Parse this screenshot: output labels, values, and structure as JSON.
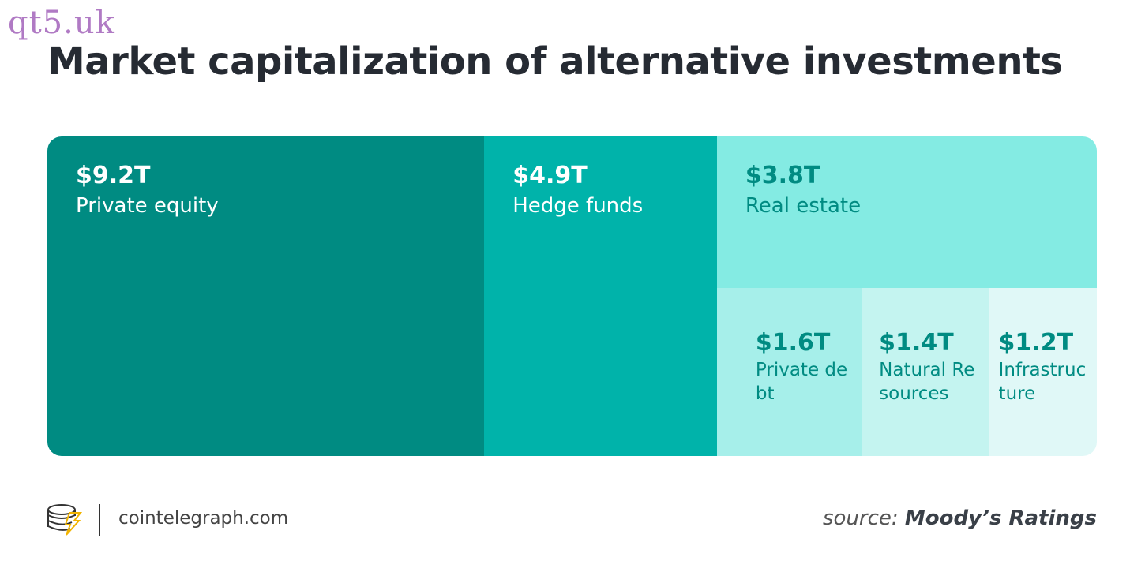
{
  "watermark": "qt5.uk",
  "chart_data": {
    "type": "treemap",
    "title": "Market capitalization of alternative investments",
    "categories": [
      "Private equity",
      "Hedge funds",
      "Real estate",
      "Private debt",
      "Natural Resources",
      "Infrastructure"
    ],
    "values": [
      9.2,
      4.9,
      3.8,
      1.6,
      1.4,
      1.2
    ],
    "value_labels": [
      "$9.2T",
      "$4.9T",
      "$3.8T",
      "$1.6T",
      "$1.4T",
      "$1.2T"
    ],
    "colors": [
      "#008b82",
      "#00b3aa",
      "#84ebe3",
      "#a6efea",
      "#c4f4f0",
      "#e0f8f7"
    ],
    "label_colors": [
      "#ffffff",
      "#ffffff",
      "#008b82",
      "#008b82",
      "#008b82",
      "#008b82"
    ]
  },
  "footer": {
    "brand": "cointelegraph.com",
    "source_prefix": "source:",
    "source": "Moody’s Ratings"
  }
}
